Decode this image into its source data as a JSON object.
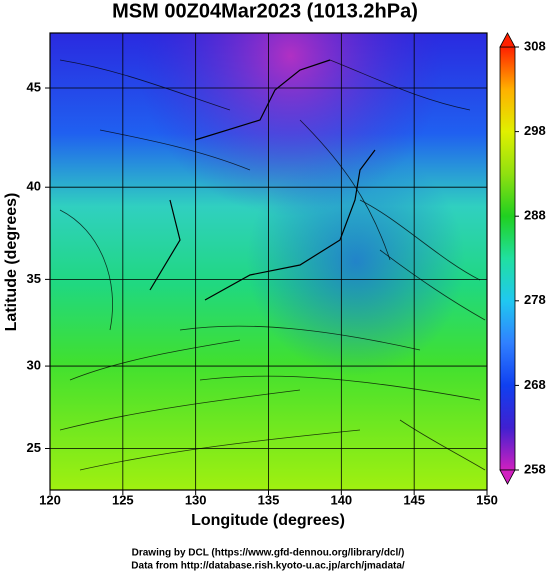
{
  "chart_data": {
    "type": "map",
    "title": "MSM 00Z04Mar2023 (1013.2hPa)",
    "x_label": "Longitude (degrees)",
    "y_label": "Latitude  (degrees)",
    "projection": "mercator",
    "xlim": [
      120,
      150
    ],
    "ylim": [
      22.4,
      47.6
    ],
    "xticks": [
      120,
      125,
      130,
      135,
      140,
      145,
      150
    ],
    "yticks": [
      25,
      30,
      35,
      40,
      45
    ],
    "grid": true,
    "colorbar": {
      "lim": [
        258,
        308
      ],
      "ticks": [
        258,
        268,
        278,
        288,
        298,
        308
      ],
      "colors": [
        "#d020c0",
        "#4020d0",
        "#1040f0",
        "#3080ff",
        "#20c8f0",
        "#20e0a0",
        "#20d020",
        "#90e010",
        "#e0f000",
        "#ffb000",
        "#ff2000"
      ]
    }
  },
  "footer": [
    "Drawing by DCL (https://www.gfd-dennou.org/library/dcl/)",
    "Data from http://database.rish.kyoto-u.ac.jp/arch/jmadata/"
  ]
}
